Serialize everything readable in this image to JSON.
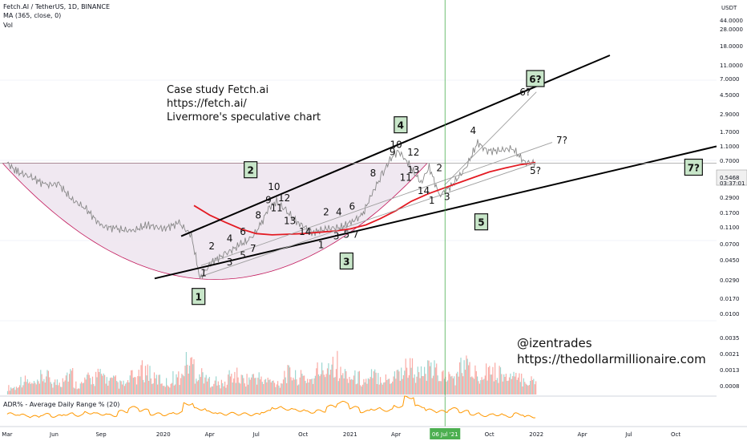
{
  "header": {
    "symbol": "Fetch.AI / TetherUS, 1D, BINANCE",
    "ma": "MA (365, close, 0)",
    "vol": "Vol"
  },
  "notes": {
    "case_line1": "Case study Fetch.ai",
    "case_line2": "https://fetch.ai/",
    "case_line3": "Livermore's speculative chart",
    "handle": "@izentrades",
    "site": "https://thedollarmillionaire.com"
  },
  "indicator": {
    "label": "ADR% - Average Daily Range % (20)",
    "value": "20.0000"
  },
  "colors": {
    "price": "#888888",
    "ma": "#e31b23",
    "cup_fill": "#ede4ef",
    "cup_line": "#c2185b",
    "volume": "#f44336",
    "adr": "#ff9800",
    "trend": "#000000",
    "vline": "#4caf50"
  },
  "chart_data": {
    "type": "line",
    "scale": "log",
    "x_ticks": [
      "Mar",
      "Jun",
      "Sep",
      "2020",
      "Apr",
      "Jul",
      "Oct",
      "2021",
      "Apr",
      "06 Jul '21",
      "Oct",
      "2022",
      "Apr",
      "Jul",
      "Oct"
    ],
    "highlighted_x": "06 Jul '21",
    "y_ticks": [
      "44.0000",
      "28.0000",
      "18.0000",
      "11.0000",
      "7.0000",
      "4.5000",
      "2.9000",
      "1.7000",
      "1.1000",
      "0.7000",
      "0.5468",
      "0.2900",
      "0.1700",
      "0.1100",
      "0.0700",
      "0.0450",
      "0.0290",
      "0.0170",
      "0.0100",
      "0.0035",
      "0.0021",
      "0.0013",
      "0.0008"
    ],
    "y_unit": "USDT",
    "last_price": "0.5468",
    "countdown": "03:37:01",
    "price_series": {
      "name": "",
      "x": [
        "2019-03-01",
        "2019-03-20",
        "2019-04-15",
        "2019-05-15",
        "2019-06-10",
        "2019-07-05",
        "2019-08-01",
        "2019-09-01",
        "2019-10-01",
        "2019-11-01",
        "2019-12-01",
        "2020-01-01",
        "2020-02-01",
        "2020-02-25",
        "2020-03-13",
        "2020-04-05",
        "2020-05-01",
        "2020-06-01",
        "2020-06-20",
        "2020-07-10",
        "2020-07-25",
        "2020-08-10",
        "2020-08-28",
        "2020-09-20",
        "2020-10-20",
        "2020-11-20",
        "2020-12-15",
        "2021-01-05",
        "2021-01-25",
        "2021-02-15",
        "2021-03-05",
        "2021-03-20",
        "2021-04-05",
        "2021-04-20",
        "2021-05-20",
        "2021-06-05",
        "2021-06-25",
        "2021-07-20",
        "2021-08-15",
        "2021-09-08",
        "2021-09-25",
        "2021-10-20",
        "2021-11-15",
        "2021-12-10",
        "2021-12-30"
      ],
      "y": [
        0.55,
        0.4,
        0.34,
        0.25,
        0.26,
        0.15,
        0.11,
        0.058,
        0.052,
        0.048,
        0.06,
        0.052,
        0.064,
        0.041,
        0.0088,
        0.016,
        0.021,
        0.03,
        0.036,
        0.06,
        0.11,
        0.14,
        0.1,
        0.066,
        0.046,
        0.053,
        0.055,
        0.068,
        0.085,
        0.2,
        0.36,
        0.62,
        0.85,
        0.62,
        0.27,
        0.48,
        0.17,
        0.25,
        0.45,
        1.15,
        0.85,
        0.86,
        0.93,
        0.56,
        0.55
      ]
    },
    "ma_series": {
      "name": "",
      "x": [
        "2020-03-01",
        "2020-04-01",
        "2020-05-01",
        "2020-06-01",
        "2020-07-01",
        "2020-08-01",
        "2020-09-01",
        "2020-10-01",
        "2020-11-01",
        "2020-12-01",
        "2021-01-01",
        "2021-02-01",
        "2021-03-01",
        "2021-04-01",
        "2021-05-01",
        "2021-06-01",
        "2021-07-01",
        "2021-08-01",
        "2021-09-01",
        "2021-10-01",
        "2021-11-01",
        "2021-12-01",
        "2021-12-30"
      ],
      "y": [
        0.12,
        0.085,
        0.066,
        0.052,
        0.044,
        0.042,
        0.043,
        0.044,
        0.046,
        0.048,
        0.052,
        0.06,
        0.075,
        0.1,
        0.14,
        0.18,
        0.22,
        0.27,
        0.33,
        0.4,
        0.46,
        0.52,
        0.56
      ]
    },
    "volume_profile": [
      0.2,
      0.4,
      0.3,
      0.5,
      0.35,
      0.6,
      0.3,
      0.45,
      0.55,
      0.4,
      0.3,
      0.5,
      0.7,
      0.45,
      0.35,
      0.5,
      0.9,
      0.6,
      0.4,
      0.3,
      0.55,
      0.45,
      0.5,
      0.4,
      0.35,
      0.6,
      0.5,
      0.45,
      0.7,
      0.95,
      0.6,
      0.5,
      0.4,
      0.55,
      0.45,
      0.65,
      0.8,
      0.6,
      0.7,
      0.55,
      0.5,
      0.85,
      0.6,
      0.75,
      0.65,
      0.5,
      0.45,
      0.4
    ],
    "adr_profile": [
      0.3,
      0.25,
      0.2,
      0.28,
      0.22,
      0.3,
      0.26,
      0.35,
      0.3,
      0.25,
      0.4,
      0.55,
      0.45,
      0.3,
      0.28,
      0.35,
      0.7,
      0.5,
      0.38,
      0.3,
      0.32,
      0.3,
      0.28,
      0.4,
      0.55,
      0.5,
      0.45,
      0.38,
      0.42,
      0.6,
      0.75,
      0.55,
      0.4,
      0.5,
      0.45,
      0.6,
      0.95,
      0.6,
      0.45,
      0.4,
      0.5,
      0.4,
      0.3,
      0.25,
      0.28,
      0.22,
      0.3,
      0.2
    ],
    "labels": {
      "box_labels": [
        {
          "text": "1",
          "x": "2020-03-10",
          "y": 0.0045
        },
        {
          "text": "2",
          "x": "2020-06-20",
          "y": 0.42
        },
        {
          "text": "3",
          "x": "2020-12-25",
          "y": 0.016
        },
        {
          "text": "4",
          "x": "2021-04-10",
          "y": 2.1
        },
        {
          "text": "5",
          "x": "2021-09-15",
          "y": 0.065
        },
        {
          "text": "6?",
          "x": "2021-12-30",
          "y": 11
        },
        {
          "text": "7?",
          "x": "2022-11-05",
          "y": 0.46
        }
      ],
      "waves": [
        {
          "text": "1",
          "x": "2020-03-20",
          "y": 0.0095
        },
        {
          "text": "2",
          "x": "2020-04-05",
          "y": 0.025
        },
        {
          "text": "3",
          "x": "2020-05-10",
          "y": 0.014
        },
        {
          "text": "4",
          "x": "2020-05-10",
          "y": 0.033
        },
        {
          "text": "5",
          "x": "2020-06-05",
          "y": 0.018
        },
        {
          "text": "6",
          "x": "2020-06-05",
          "y": 0.042
        },
        {
          "text": "7",
          "x": "2020-06-25",
          "y": 0.023
        },
        {
          "text": "8",
          "x": "2020-07-05",
          "y": 0.075
        },
        {
          "text": "9",
          "x": "2020-07-25",
          "y": 0.13
        },
        {
          "text": "10",
          "x": "2020-08-05",
          "y": 0.21
        },
        {
          "text": "11",
          "x": "2020-08-10",
          "y": 0.097
        },
        {
          "text": "12",
          "x": "2020-08-25",
          "y": 0.14
        },
        {
          "text": "13",
          "x": "2020-09-05",
          "y": 0.062
        },
        {
          "text": "14",
          "x": "2020-10-05",
          "y": 0.042
        },
        {
          "text": "1",
          "x": "2020-11-05",
          "y": 0.026
        },
        {
          "text": "2",
          "x": "2020-11-15",
          "y": 0.084
        },
        {
          "text": "3",
          "x": "2020-12-05",
          "y": 0.036
        },
        {
          "text": "4",
          "x": "2020-12-10",
          "y": 0.084
        },
        {
          "text": "5",
          "x": "2020-12-25",
          "y": 0.038
        },
        {
          "text": "6",
          "x": "2021-01-05",
          "y": 0.104
        },
        {
          "text": "7",
          "x": "2021-01-12",
          "y": 0.038
        },
        {
          "text": "8",
          "x": "2021-02-15",
          "y": 0.34
        },
        {
          "text": "9",
          "x": "2021-03-25",
          "y": 0.73
        },
        {
          "text": "10",
          "x": "2021-04-01",
          "y": 0.95
        },
        {
          "text": "11",
          "x": "2021-04-20",
          "y": 0.29
        },
        {
          "text": "12",
          "x": "2021-05-05",
          "y": 0.72
        },
        {
          "text": "13",
          "x": "2021-05-05",
          "y": 0.38
        },
        {
          "text": "14",
          "x": "2021-05-25",
          "y": 0.18
        },
        {
          "text": "1",
          "x": "2021-06-10",
          "y": 0.128
        },
        {
          "text": "2",
          "x": "2021-06-25",
          "y": 0.41
        },
        {
          "text": "3",
          "x": "2021-07-10",
          "y": 0.145
        },
        {
          "text": "4",
          "x": "2021-08-30",
          "y": 1.55
        },
        {
          "text": "5?",
          "x": "2021-12-30",
          "y": 0.37
        },
        {
          "text": "6?",
          "x": "2021-12-10",
          "y": 6.2
        },
        {
          "text": "7?",
          "x": "2022-02-20",
          "y": 1.1
        }
      ]
    },
    "trendlines": [
      {
        "x1": "2020-02-05",
        "y1": 0.04,
        "x2": "2022-05-25",
        "y2": 26
      },
      {
        "x1": "2019-12-15",
        "y1": 0.0088,
        "x2": "2022-12-20",
        "y2": 1.0
      },
      {
        "x1": "2020-03-15",
        "y1": 0.0095,
        "x2": "2021-12-30",
        "y2": 0.55
      },
      {
        "x1": "2020-03-15",
        "y1": 0.014,
        "x2": "2022-02-01",
        "y2": 1.15
      },
      {
        "x1": "2021-07-05",
        "y1": 0.25,
        "x2": "2022-01-01",
        "y2": 7.0
      }
    ]
  }
}
